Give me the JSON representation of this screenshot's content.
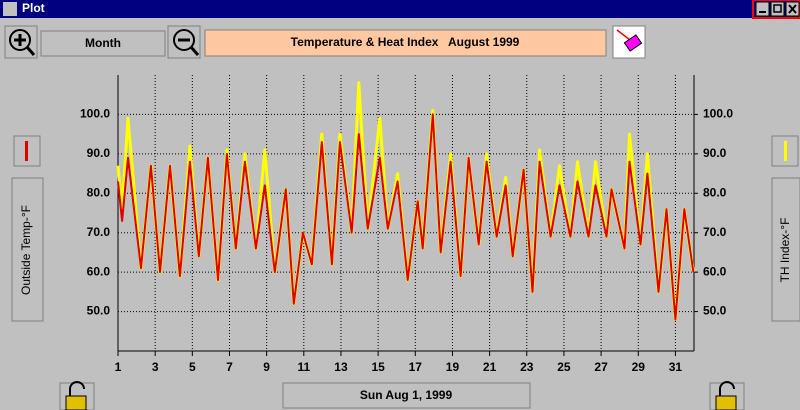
{
  "ui": {
    "window_title": "Plot",
    "range_button": "Month",
    "date_button": "Sun Aug 1, 1999"
  },
  "chart_data": {
    "type": "line",
    "title": "Temperature & Heat Index   August 1999",
    "ylabel": "Outside Temp-°F",
    "y2label": "TH Index-°F",
    "x": [
      1.0,
      1.22,
      1.54,
      2.24,
      2.77,
      3.26,
      3.8,
      4.33,
      4.87,
      5.35,
      5.84,
      6.38,
      6.86,
      7.34,
      7.83,
      8.42,
      8.9,
      9.44,
      10.03,
      10.46,
      10.95,
      11.43,
      11.97,
      12.51,
      12.94,
      13.58,
      13.96,
      14.44,
      15.09,
      15.52,
      16.05,
      16.59,
      17.13,
      17.4,
      17.94,
      18.37,
      18.9,
      19.44,
      19.87,
      20.41,
      20.84,
      21.38,
      21.86,
      22.24,
      22.83,
      23.31,
      23.69,
      24.28,
      24.76,
      25.35,
      25.73,
      26.32,
      26.7,
      27.29,
      27.56,
      28.26,
      28.53,
      29.12,
      29.49,
      30.09,
      30.52,
      31.0,
      31.48,
      31.97
    ],
    "series": [
      {
        "color": "#ffff00",
        "axis": "y2",
        "values": [
          87,
          76,
          99,
          61,
          87,
          60,
          87,
          59,
          92,
          64,
          89,
          58,
          91,
          66,
          90,
          66,
          91,
          60,
          81,
          52,
          70,
          62,
          95,
          62,
          95,
          70,
          108,
          71,
          99,
          71,
          85,
          58,
          78,
          66,
          101,
          65,
          90,
          59,
          89,
          67,
          90,
          69,
          84,
          64,
          86,
          55,
          91,
          69,
          87,
          69,
          88,
          69,
          88,
          69,
          81,
          66,
          95,
          67,
          90,
          55,
          76,
          48,
          76,
          60
        ]
      },
      {
        "color": "#e00000",
        "values": [
          83,
          73,
          89,
          61,
          87,
          60,
          87,
          59,
          88,
          64,
          89,
          58,
          90,
          66,
          88,
          66,
          82,
          60,
          81,
          52,
          70,
          62,
          93,
          62,
          93,
          70,
          95,
          71,
          89,
          71,
          83,
          58,
          78,
          66,
          100,
          65,
          88,
          59,
          89,
          67,
          88,
          69,
          82,
          64,
          86,
          55,
          88,
          69,
          82,
          69,
          83,
          69,
          82,
          69,
          81,
          66,
          88,
          67,
          85,
          55,
          76,
          48,
          76,
          60
        ]
      }
    ],
    "xlim": [
      1,
      32
    ],
    "xticks": [
      1,
      3,
      5,
      7,
      9,
      11,
      13,
      15,
      17,
      19,
      21,
      23,
      25,
      27,
      29,
      31
    ],
    "ylim": [
      40,
      110
    ],
    "yticks": [
      {
        "value": 50,
        "label": "50.0"
      },
      {
        "value": 60,
        "label": "60.0"
      },
      {
        "value": 70,
        "label": "70.0"
      },
      {
        "value": 80,
        "label": "80.0"
      },
      {
        "value": 90,
        "label": "90.0"
      },
      {
        "value": 100,
        "label": "100.0"
      }
    ],
    "y2lim": [
      40,
      110
    ],
    "y2ticks": [
      {
        "value": 50,
        "label": "50.0"
      },
      {
        "value": 60,
        "label": "60.0"
      },
      {
        "value": 70,
        "label": "70.0"
      },
      {
        "value": 80,
        "label": "80.0"
      },
      {
        "value": 90,
        "label": "90.0"
      },
      {
        "value": 100,
        "label": "100.0"
      }
    ],
    "grid": true
  }
}
